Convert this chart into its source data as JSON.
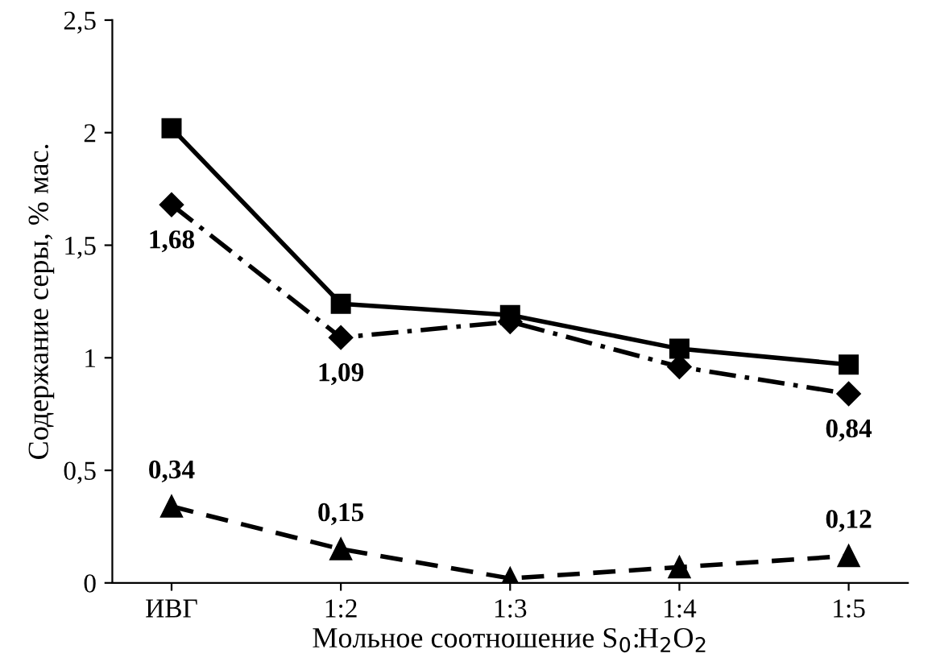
{
  "chart_data": {
    "type": "line",
    "xlabel": "Мольное соотношение S$_{0}$:H$_{2}$O$_{2}$",
    "ylabel": "Содержание серы, % мас.",
    "categories": [
      "ИВГ",
      "1:2",
      "1:3",
      "1:4",
      "1:5"
    ],
    "ylim": [
      0,
      2.5
    ],
    "yticks": [
      0,
      {
        "value": 0.5,
        "label": "0,5"
      },
      1,
      {
        "value": 1.5,
        "label": "1,5"
      },
      2,
      {
        "value": 2.5,
        "label": "2,5"
      }
    ],
    "grid": false,
    "legend": false,
    "series": [
      {
        "color": "#000000",
        "marker": "square",
        "line_style": "solid",
        "values": [
          2.02,
          1.24,
          1.19,
          1.04,
          0.97
        ]
      },
      {
        "color": "#000000",
        "marker": "diamond",
        "line_style": "dashdot",
        "values": [
          1.68,
          1.09,
          1.16,
          0.96,
          0.84
        ],
        "value_labels": [
          "1,68",
          "1,09",
          null,
          null,
          "0,84"
        ]
      },
      {
        "color": "#000000",
        "marker": "triangle",
        "line_style": "dashed",
        "values": [
          0.34,
          0.15,
          0.02,
          0.07,
          0.12
        ],
        "value_labels": [
          "0,34",
          "0,15",
          null,
          null,
          "0,12"
        ]
      }
    ]
  }
}
